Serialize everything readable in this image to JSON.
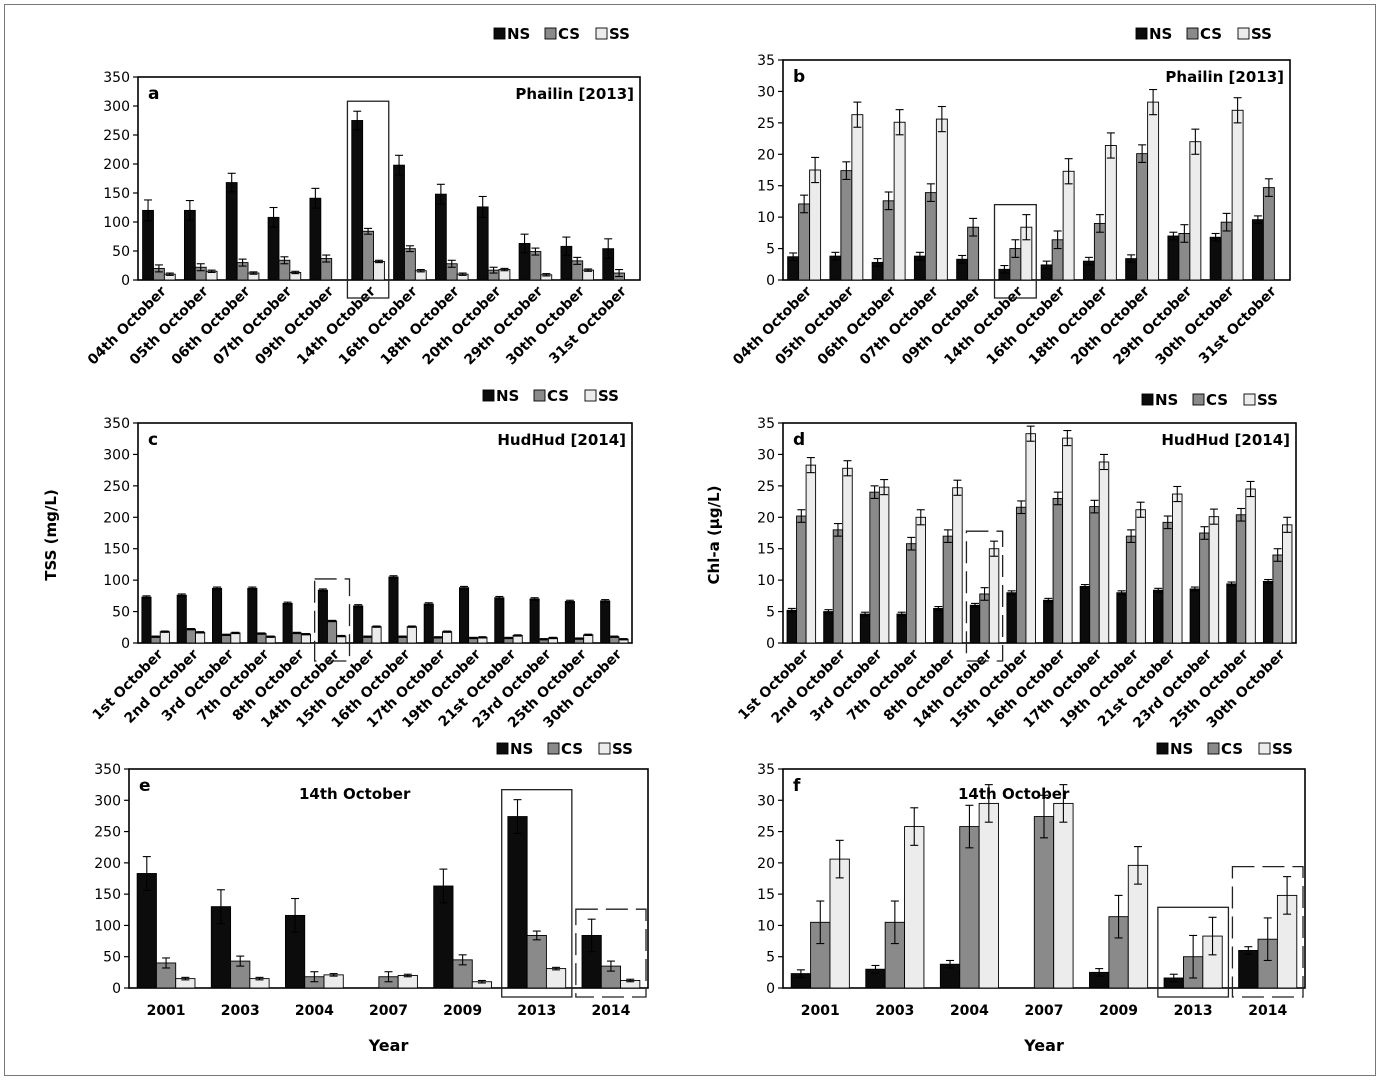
{
  "figure": {
    "series_names": [
      "NS",
      "CS",
      "SS"
    ],
    "colors": {
      "NS": "#0c0c0c",
      "CS": "#8a8a8a",
      "SS": "#ececec",
      "axis": "#000000"
    },
    "y_label_tss": "TSS (mg/L)",
    "y_label_chla": "Chl-a (µg/L)"
  },
  "chart_data": [
    {
      "id": "a",
      "type": "bar",
      "panel_label": "a",
      "title": "Phailin [2013]",
      "xlabel": "",
      "ylabel": "TSS (mg/L)",
      "ylim": [
        0,
        350
      ],
      "yticks": [
        0,
        50,
        100,
        150,
        200,
        250,
        300,
        350
      ],
      "legend": "top-right",
      "highlight": {
        "category": "14th October",
        "style": "solid"
      },
      "categories": [
        "04th October",
        "05th October",
        "06th October",
        "07th October",
        "09th October",
        "14th October",
        "16th October",
        "18th October",
        "20th October",
        "29th October",
        "30th October",
        "31st October"
      ],
      "series": [
        {
          "name": "NS",
          "values": [
            120,
            120,
            168,
            108,
            141,
            275,
            198,
            148,
            126,
            63,
            58,
            54
          ],
          "errors": [
            18,
            17,
            16,
            17,
            17,
            16,
            17,
            17,
            18,
            16,
            16,
            17
          ]
        },
        {
          "name": "CS",
          "values": [
            20,
            22,
            30,
            34,
            37,
            84,
            54,
            28,
            17,
            49,
            33,
            12
          ],
          "errors": [
            6,
            6,
            6,
            6,
            6,
            5,
            5,
            6,
            5,
            6,
            6,
            6
          ]
        },
        {
          "name": "SS",
          "values": [
            10,
            15,
            12,
            13,
            0,
            32,
            16,
            10,
            18,
            9,
            17,
            0
          ],
          "errors": [
            2,
            2,
            2,
            2,
            0,
            2,
            2,
            2,
            2,
            2,
            2,
            0
          ]
        }
      ]
    },
    {
      "id": "b",
      "type": "bar",
      "panel_label": "b",
      "title": "Phailin [2013]",
      "xlabel": "",
      "ylabel": "Chl-a (µg/L)",
      "ylim": [
        0,
        35
      ],
      "yticks": [
        0,
        5,
        10,
        15,
        20,
        25,
        30,
        35
      ],
      "legend": "top-right",
      "highlight": {
        "category": "14th October",
        "style": "solid"
      },
      "categories": [
        "04th October",
        "05th October",
        "06th October",
        "07th October",
        "09th October",
        "14th October",
        "16th October",
        "18th October",
        "20th October",
        "29th October",
        "30th October",
        "31st October"
      ],
      "series": [
        {
          "name": "NS",
          "values": [
            3.7,
            3.8,
            2.8,
            3.8,
            3.3,
            1.7,
            2.4,
            3.0,
            3.4,
            7.0,
            6.8,
            9.6
          ],
          "errors": [
            0.6,
            0.6,
            0.6,
            0.6,
            0.6,
            0.6,
            0.6,
            0.6,
            0.6,
            0.6,
            0.6,
            0.6
          ]
        },
        {
          "name": "CS",
          "values": [
            12.1,
            17.4,
            12.6,
            13.9,
            8.4,
            5.0,
            6.4,
            9.0,
            20.1,
            7.4,
            9.2,
            14.7
          ],
          "errors": [
            1.4,
            1.4,
            1.4,
            1.4,
            1.4,
            1.4,
            1.4,
            1.4,
            1.4,
            1.4,
            1.4,
            1.4
          ]
        },
        {
          "name": "SS",
          "values": [
            17.5,
            26.3,
            25.1,
            25.6,
            0,
            8.4,
            17.3,
            21.4,
            28.3,
            22.0,
            27.0,
            0
          ],
          "errors": [
            2.0,
            2.0,
            2.0,
            2.0,
            0,
            2.0,
            2.0,
            2.0,
            2.0,
            2.0,
            2.0,
            0
          ]
        }
      ]
    },
    {
      "id": "c",
      "type": "bar",
      "panel_label": "c",
      "title": "HudHud [2014]",
      "xlabel": "",
      "ylabel": "TSS (mg/L)",
      "ylim": [
        0,
        350
      ],
      "yticks": [
        0,
        50,
        100,
        150,
        200,
        250,
        300,
        350
      ],
      "legend": "top-right",
      "highlight": {
        "category": "14th October",
        "style": "dashed"
      },
      "categories": [
        "1st October",
        "2nd October",
        "3rd October",
        "7th October",
        "8th October",
        "14th October",
        "15th October",
        "16th October",
        "17th October",
        "19th October",
        "21st October",
        "23rd October",
        "25th October",
        "30th October"
      ],
      "series": [
        {
          "name": "NS",
          "values": [
            73,
            76,
            87,
            87,
            63,
            84,
            59,
            105,
            62,
            88,
            72,
            70,
            66,
            67
          ],
          "errors": [
            2,
            2,
            2,
            2,
            2,
            2,
            2,
            2,
            2,
            2,
            2,
            2,
            2,
            2
          ]
        },
        {
          "name": "CS",
          "values": [
            10,
            22,
            13,
            15,
            16,
            35,
            10,
            10,
            9,
            8,
            8,
            6,
            7,
            10
          ],
          "errors": [
            1,
            1,
            1,
            1,
            1,
            1,
            1,
            1,
            1,
            1,
            1,
            1,
            1,
            1
          ]
        },
        {
          "name": "SS",
          "values": [
            18,
            17,
            16,
            10,
            14,
            11,
            26,
            26,
            18,
            9,
            12,
            8,
            13,
            6
          ],
          "errors": [
            1,
            1,
            1,
            1,
            1,
            1,
            1,
            1,
            1,
            1,
            1,
            1,
            1,
            1
          ]
        }
      ]
    },
    {
      "id": "d",
      "type": "bar",
      "panel_label": "d",
      "title": "HudHud [2014]",
      "xlabel": "",
      "ylabel": "Chl-a (µg/L)",
      "ylim": [
        0,
        35
      ],
      "yticks": [
        0,
        5,
        10,
        15,
        20,
        25,
        30,
        35
      ],
      "legend": "top-right",
      "highlight": {
        "category": "14th October",
        "style": "dashed"
      },
      "categories": [
        "1st October",
        "2nd October",
        "3rd October",
        "7th October",
        "8th October",
        "14th October",
        "15th October",
        "16th October",
        "17th October",
        "19th October",
        "21st October",
        "23rd October",
        "25th October",
        "30th October"
      ],
      "series": [
        {
          "name": "NS",
          "values": [
            5.2,
            5.0,
            4.6,
            4.6,
            5.5,
            6.0,
            8.0,
            6.8,
            9.0,
            8.0,
            8.4,
            8.6,
            9.4,
            9.8
          ],
          "errors": [
            0.3,
            0.3,
            0.3,
            0.3,
            0.3,
            0.3,
            0.3,
            0.3,
            0.3,
            0.3,
            0.3,
            0.3,
            0.3,
            0.3
          ]
        },
        {
          "name": "CS",
          "values": [
            20.2,
            18.0,
            24.0,
            15.8,
            17.0,
            7.8,
            21.6,
            23.0,
            21.7,
            17.0,
            19.2,
            17.5,
            20.4,
            14.0
          ],
          "errors": [
            1.0,
            1.0,
            1.0,
            1.0,
            1.0,
            1.0,
            1.0,
            1.0,
            1.0,
            1.0,
            1.0,
            1.0,
            1.0,
            1.0
          ]
        },
        {
          "name": "SS",
          "values": [
            28.3,
            27.8,
            24.8,
            20.0,
            24.7,
            15.0,
            33.3,
            32.6,
            28.8,
            21.2,
            23.7,
            20.1,
            24.5,
            18.8
          ],
          "errors": [
            1.2,
            1.2,
            1.2,
            1.2,
            1.2,
            1.2,
            1.2,
            1.2,
            1.2,
            1.2,
            1.2,
            1.2,
            1.2,
            1.2
          ]
        }
      ]
    },
    {
      "id": "e",
      "type": "bar",
      "panel_label": "e",
      "title": "14th October",
      "xlabel": "Year",
      "ylabel": "TSS (mg/L)",
      "ylim": [
        0,
        350
      ],
      "yticks": [
        0,
        50,
        100,
        150,
        200,
        250,
        300,
        350
      ],
      "legend": "top-right",
      "highlight": [
        {
          "category": "2013",
          "style": "solid"
        },
        {
          "category": "2014",
          "style": "dashed"
        }
      ],
      "categories": [
        "2001",
        "2003",
        "2004",
        "2007",
        "2009",
        "2013",
        "2014"
      ],
      "series": [
        {
          "name": "NS",
          "values": [
            183,
            130,
            116,
            0,
            163,
            274,
            84
          ],
          "errors": [
            27,
            27,
            27,
            0,
            27,
            27,
            26
          ]
        },
        {
          "name": "CS",
          "values": [
            40,
            43,
            18,
            18,
            45,
            84,
            35
          ],
          "errors": [
            8,
            8,
            8,
            8,
            8,
            7,
            8
          ]
        },
        {
          "name": "SS",
          "values": [
            15,
            15,
            21,
            20,
            10,
            31,
            12
          ],
          "errors": [
            2,
            2,
            2,
            2,
            2,
            2,
            2
          ]
        }
      ]
    },
    {
      "id": "f",
      "type": "bar",
      "panel_label": "f",
      "title": "14th October",
      "xlabel": "Year",
      "ylabel": "Chl-a (µg/L)",
      "ylim": [
        0,
        35
      ],
      "yticks": [
        0,
        5,
        10,
        15,
        20,
        25,
        30,
        35
      ],
      "legend": "top-right",
      "highlight": [
        {
          "category": "2013",
          "style": "solid"
        },
        {
          "category": "2014",
          "style": "dashed"
        }
      ],
      "categories": [
        "2001",
        "2003",
        "2004",
        "2007",
        "2009",
        "2013",
        "2014"
      ],
      "series": [
        {
          "name": "NS",
          "values": [
            2.3,
            3.0,
            3.8,
            0,
            2.5,
            1.6,
            6.0
          ],
          "errors": [
            0.6,
            0.6,
            0.6,
            0,
            0.6,
            0.6,
            0.6
          ]
        },
        {
          "name": "CS",
          "values": [
            10.5,
            10.5,
            25.8,
            27.4,
            11.4,
            5.0,
            7.8
          ],
          "errors": [
            3.4,
            3.4,
            3.4,
            3.4,
            3.4,
            3.4,
            3.4
          ]
        },
        {
          "name": "SS",
          "values": [
            20.6,
            25.8,
            29.5,
            29.5,
            19.6,
            8.3,
            14.8
          ],
          "errors": [
            3.0,
            3.0,
            3.0,
            3.0,
            3.0,
            3.0,
            3.0
          ]
        }
      ]
    }
  ]
}
